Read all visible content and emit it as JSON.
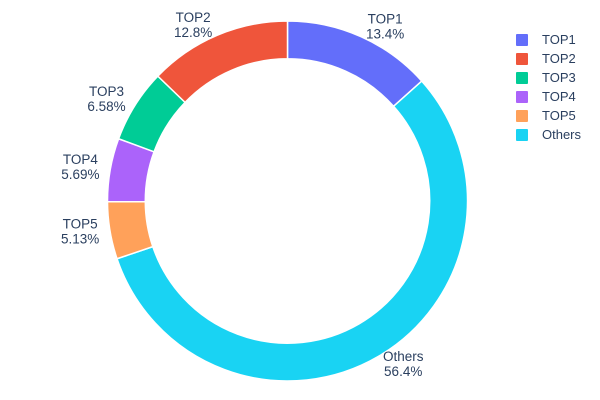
{
  "chart_data": {
    "type": "pie",
    "subtype": "donut",
    "title": "",
    "hole": 0.79,
    "rotation_deg": 0,
    "start_position": "top",
    "grid": false,
    "legend_position": "top-right",
    "background_color": "#ffffff",
    "text_color": "#2a3f5f",
    "categories": [
      "TOP1",
      "TOP2",
      "TOP3",
      "TOP4",
      "TOP5",
      "Others"
    ],
    "values": [
      13.4,
      12.8,
      6.58,
      5.69,
      5.13,
      56.4
    ],
    "pct_labels": [
      "13.4%",
      "12.8%",
      "6.58%",
      "5.69%",
      "5.13%",
      "56.4%"
    ],
    "colors": [
      "#636efa",
      "#ef553b",
      "#00cc96",
      "#ab63fa",
      "#ffa15a",
      "#19d3f3"
    ],
    "clockwise_display_order": [
      0,
      5,
      4,
      3,
      2,
      1
    ]
  }
}
